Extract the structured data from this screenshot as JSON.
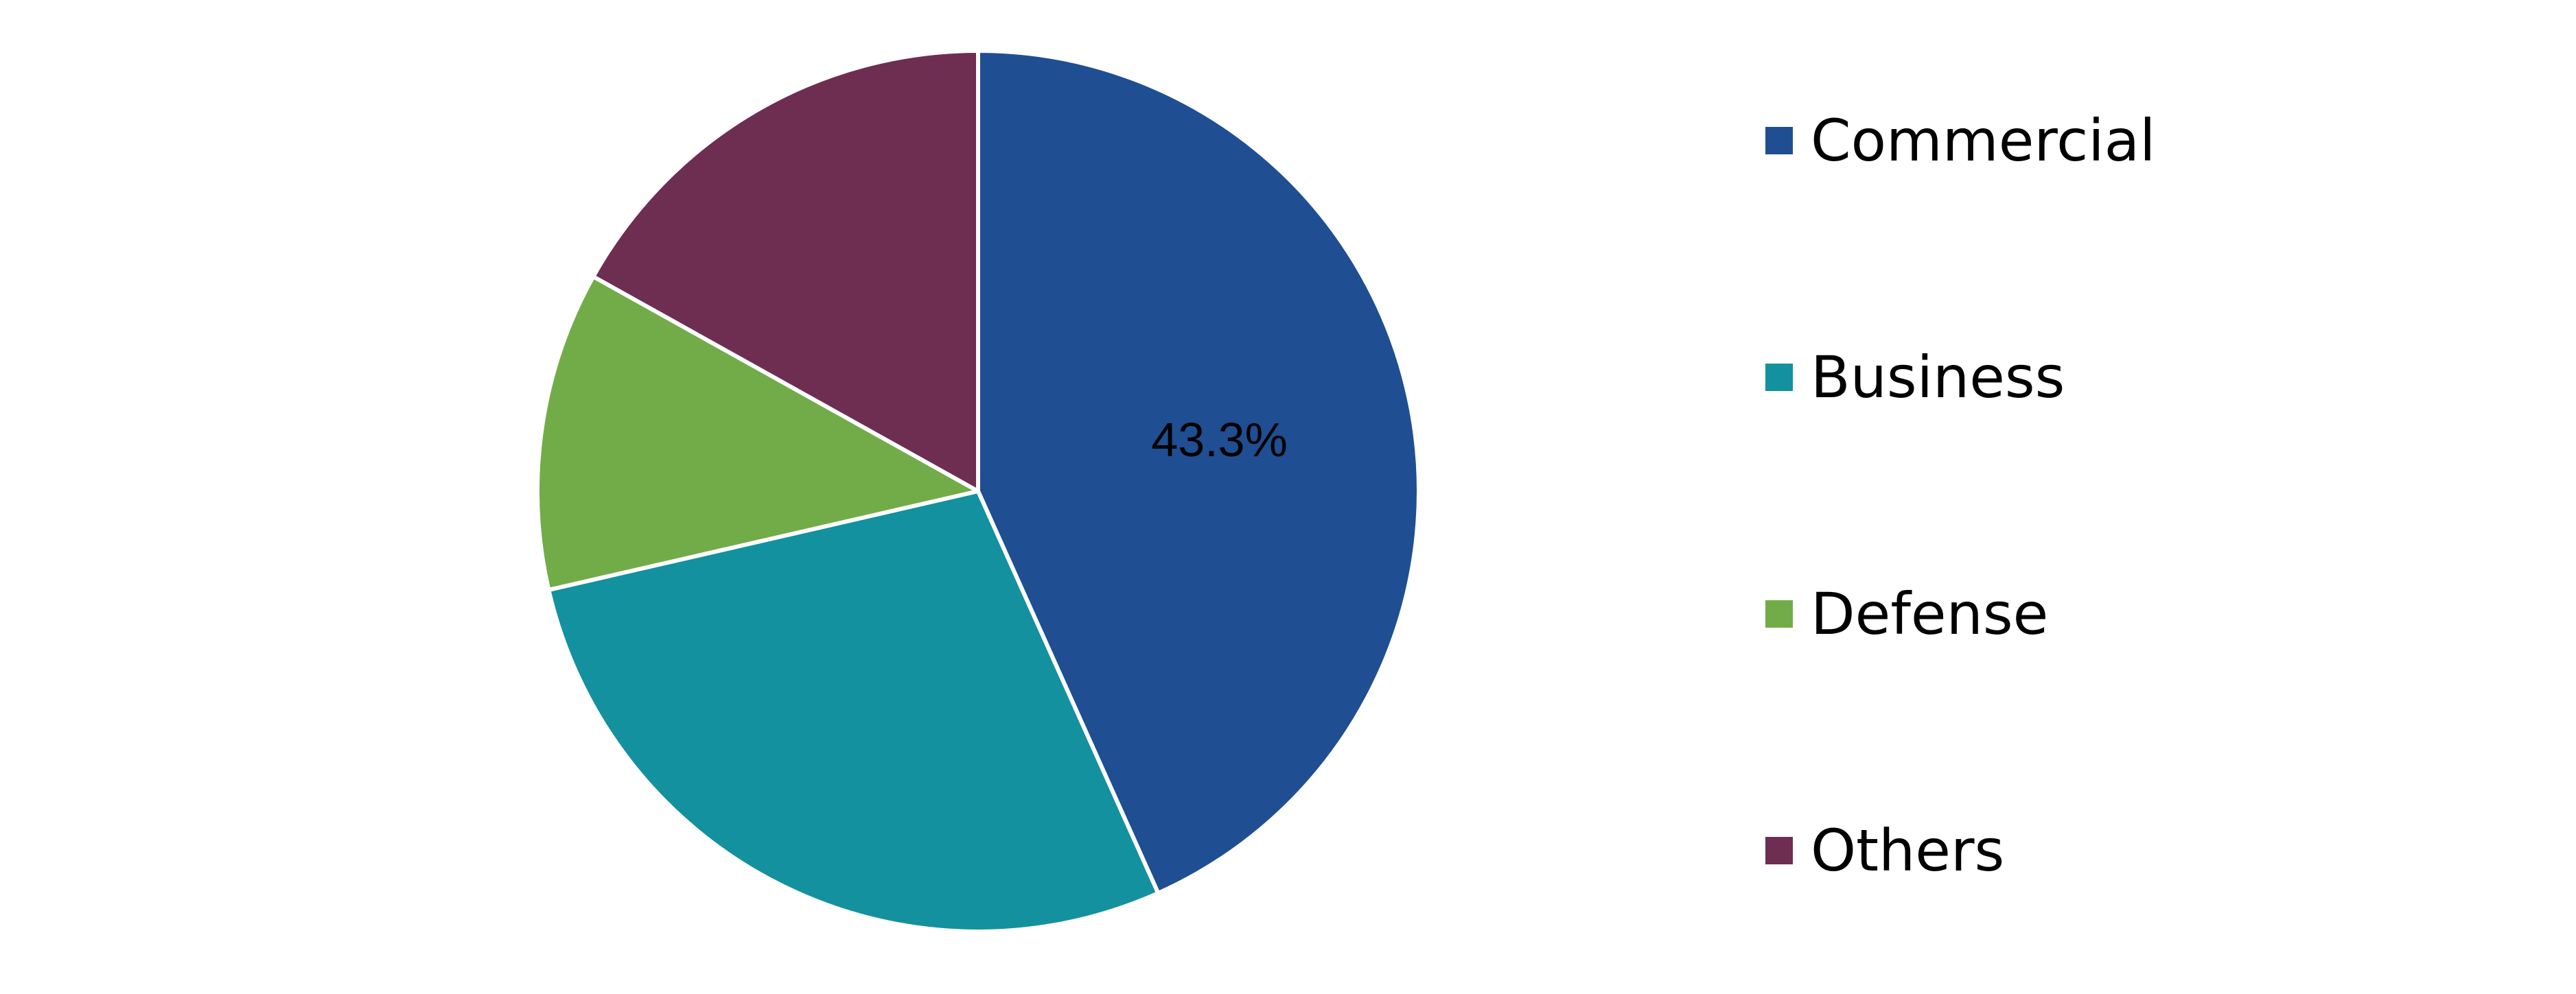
{
  "chart_data": {
    "type": "pie",
    "title": "",
    "start_angle_deg": 0,
    "direction": "clockwise",
    "legend_position": "right",
    "slices": [
      {
        "label": "Commercial",
        "value": 43.3,
        "color": "#1F4E92",
        "data_label": "43.3%"
      },
      {
        "label": "Business",
        "value": 28.1,
        "color": "#13919E",
        "data_label": ""
      },
      {
        "label": "Defense",
        "value": 11.7,
        "color": "#72AC48",
        "data_label": ""
      },
      {
        "label": "Others",
        "value": 16.9,
        "color": "#6D2E51",
        "data_label": ""
      }
    ]
  }
}
